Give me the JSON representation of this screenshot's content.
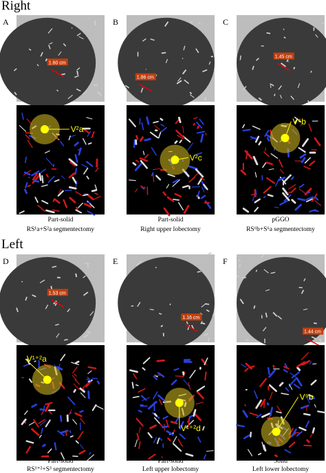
{
  "sections": [
    {
      "heading": "Right",
      "panels": [
        {
          "letter": "A",
          "measure": "1.60 cm",
          "vessel": "V²a",
          "caption": [
            "Part-solid",
            "RS¹a+S²a segmentectomy"
          ]
        },
        {
          "letter": "B",
          "measure": "1.86 cm",
          "vessel": "V²c",
          "caption": [
            "Part-solid",
            "Right upper lobectomy"
          ]
        },
        {
          "letter": "C",
          "measure": "1.45 cm",
          "vessel": "V⁶b",
          "caption": [
            "pGGO",
            "RS⁶b+S⁶a segmentectomy"
          ]
        }
      ]
    },
    {
      "heading": "Left",
      "panels": [
        {
          "letter": "D",
          "measure": "1.53 cm",
          "vessel": "V¹⁺²a",
          "caption": [
            "Part-solid",
            "RS¹⁺²+S³ segmentectomy"
          ]
        },
        {
          "letter": "E",
          "measure": "1.16 cm",
          "vessel": "V¹⁺²d",
          "caption": [
            "Part-solid",
            "Left upper lobectomy"
          ]
        },
        {
          "letter": "F",
          "measure": "1.44 cm",
          "vessel": "V⁹b",
          "caption": [
            "Solid",
            "Left lower lobectomy"
          ]
        }
      ]
    }
  ]
}
